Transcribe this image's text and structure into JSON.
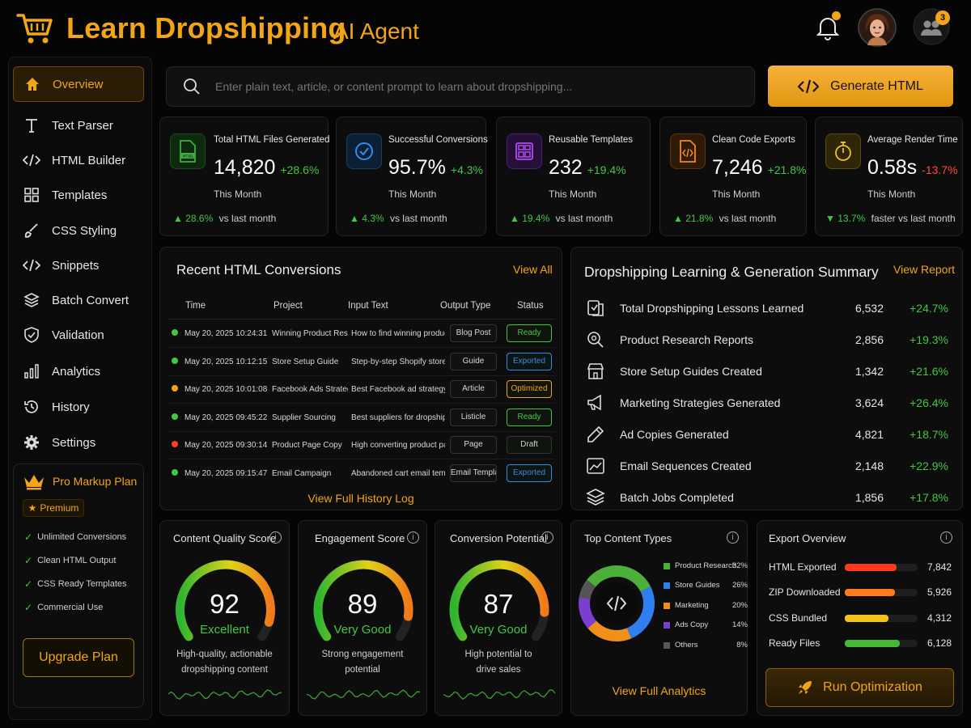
{
  "header": {
    "title": "Learn Dropshipping",
    "subtitle": "AI Agent",
    "notification_dot": true,
    "team_badge": "3"
  },
  "sidebar": {
    "items": [
      {
        "label": "Overview",
        "icon": "home-icon",
        "active": true
      },
      {
        "label": "Text Parser",
        "icon": "text-icon"
      },
      {
        "label": "HTML Builder",
        "icon": "code-icon"
      },
      {
        "label": "Templates",
        "icon": "grid-icon"
      },
      {
        "label": "CSS Styling",
        "icon": "brush-icon"
      },
      {
        "label": "Snippets",
        "icon": "code-icon"
      },
      {
        "label": "Batch Convert",
        "icon": "layers-icon"
      },
      {
        "label": "Validation",
        "icon": "shield-check-icon"
      },
      {
        "label": "Analytics",
        "icon": "bars-icon"
      },
      {
        "label": "History",
        "icon": "history-icon"
      },
      {
        "label": "Settings",
        "icon": "gear-icon"
      }
    ],
    "pro": {
      "title": "Pro Markup Plan",
      "badge": "Premium",
      "features": [
        "Unlimited Conversions",
        "Clean HTML Output",
        "CSS Ready Templates",
        "Commercial Use"
      ],
      "upgrade_label": "Upgrade Plan"
    }
  },
  "search": {
    "placeholder": "Enter plain text, article, or content prompt to learn about dropshipping...",
    "generate_label": "Generate HTML"
  },
  "stats": [
    {
      "title": "Total HTML Files Generated",
      "value": "14,820",
      "change": "+28.6%",
      "period": "This Month",
      "foot_pct": "28.6%",
      "foot_text": "vs last month",
      "icon": "html-file-icon",
      "color": "#3fae3f",
      "neg": false
    },
    {
      "title": "Successful Conversions",
      "value": "95.7%",
      "change": "+4.3%",
      "period": "This Month",
      "foot_pct": "4.3%",
      "foot_text": "vs last month",
      "icon": "check-circle-icon",
      "color": "#2e8ef0",
      "neg": false
    },
    {
      "title": "Reusable Templates",
      "value": "232",
      "change": "+19.4%",
      "period": "This Month",
      "foot_pct": "19.4%",
      "foot_text": "vs last month",
      "icon": "template-icon",
      "color": "#b14cf0",
      "neg": false
    },
    {
      "title": "Clean Code Exports",
      "value": "7,246",
      "change": "+21.8%",
      "period": "This Month",
      "foot_pct": "21.8%",
      "foot_text": "vs last month",
      "icon": "code-file-icon",
      "color": "#f08a1e",
      "neg": false
    },
    {
      "title": "Average Render Time",
      "value": "0.58s",
      "change": "-13.7%",
      "period": "This Month",
      "foot_pct": "13.7%",
      "foot_text": "faster vs last month",
      "icon": "stopwatch-icon",
      "color": "#f2c21a",
      "neg": true
    }
  ],
  "recent": {
    "title": "Recent HTML Conversions",
    "view_all": "View All",
    "headers": [
      "Time",
      "Project",
      "Input Text",
      "Output Type",
      "Status"
    ],
    "rows": [
      {
        "time": "May 20, 2025 10:24:31",
        "project": "Winning Product Research",
        "input": "How to find winning products...",
        "type": "Blog Post",
        "status": "Ready",
        "dot": "#42c742",
        "status_color": "#42c742"
      },
      {
        "time": "May 20, 2025 10:12:15",
        "project": "Store Setup Guide",
        "input": "Step-by-step Shopify store...",
        "type": "Guide",
        "status": "Exported",
        "dot": "#42c742",
        "status_color": "#2e8ef0"
      },
      {
        "time": "May 20, 2025 10:01:08",
        "project": "Facebook Ads Strategy",
        "input": "Best Facebook ad strategy...",
        "type": "Article",
        "status": "Optimized",
        "dot": "#f2a516",
        "status_color": "#f2a516"
      },
      {
        "time": "May 20, 2025 09:45:22",
        "project": "Supplier Sourcing",
        "input": "Best suppliers for dropshipping...",
        "type": "Listicle",
        "status": "Ready",
        "dot": "#42c742",
        "status_color": "#42c742"
      },
      {
        "time": "May 20, 2025 09:30:14",
        "project": "Product Page Copy",
        "input": "High converting product page...",
        "type": "Page",
        "status": "Draft",
        "dot": "#ff3a2a",
        "status_color": "#d0d0d0"
      },
      {
        "time": "May 20, 2025 09:15:47",
        "project": "Email Campaign",
        "input": "Abandoned cart email template...",
        "type": "Email Template",
        "status": "Exported",
        "dot": "#42c742",
        "status_color": "#2e8ef0"
      }
    ],
    "footer_link": "View Full History Log"
  },
  "summary": {
    "title": "Dropshipping Learning & Generation Summary",
    "view_report": "View Report",
    "rows": [
      {
        "label": "Total Dropshipping Lessons Learned",
        "value": "6,532",
        "change": "+24.7%",
        "icon": "lessons-icon"
      },
      {
        "label": "Product Research Reports",
        "value": "2,856",
        "change": "+19.3%",
        "icon": "magnifier-icon"
      },
      {
        "label": "Store Setup Guides Created",
        "value": "1,342",
        "change": "+21.6%",
        "icon": "store-icon"
      },
      {
        "label": "Marketing Strategies Generated",
        "value": "3,624",
        "change": "+26.4%",
        "icon": "megaphone-icon"
      },
      {
        "label": "Ad Copies Generated",
        "value": "4,821",
        "change": "+18.7%",
        "icon": "pencil-icon"
      },
      {
        "label": "Email Sequences Created",
        "value": "2,148",
        "change": "+22.9%",
        "icon": "image-chart-icon"
      },
      {
        "label": "Batch Jobs Completed",
        "value": "1,856",
        "change": "+17.8%",
        "icon": "layers-icon"
      }
    ]
  },
  "gauges": [
    {
      "title": "Content Quality Score",
      "score": "92",
      "score_frac": 0.92,
      "rating": "Excellent",
      "desc1": "High-quality, actionable",
      "desc2": "dropshipping content",
      "rating_color": "#42c742"
    },
    {
      "title": "Engagement Score",
      "score": "89",
      "score_frac": 0.89,
      "rating": "Very Good",
      "desc1": "Strong engagement",
      "desc2": "potential",
      "rating_color": "#42c742"
    },
    {
      "title": "Conversion Potential",
      "score": "87",
      "score_frac": 0.87,
      "rating": "Very Good",
      "desc1": "High potential to",
      "desc2": "drive sales",
      "rating_color": "#42c742"
    }
  ],
  "top_content": {
    "title": "Top Content Types",
    "items": [
      {
        "name": "Product Research",
        "pct": "32%",
        "value": 32,
        "color": "#4caf3a"
      },
      {
        "name": "Store Guides",
        "pct": "26%",
        "value": 26,
        "color": "#2f7ff0"
      },
      {
        "name": "Marketing",
        "pct": "20%",
        "value": 20,
        "color": "#f0901a"
      },
      {
        "name": "Ads Copy",
        "pct": "14%",
        "value": 14,
        "color": "#7b3fd0"
      },
      {
        "name": "Others",
        "pct": "8%",
        "value": 8,
        "color": "#555555"
      }
    ],
    "footer_link": "View Full Analytics"
  },
  "export": {
    "title": "Export Overview",
    "rows": [
      {
        "label": "HTML Exported",
        "value": "7,842",
        "frac": 0.71,
        "color": "#ff3a1a"
      },
      {
        "label": "ZIP Downloaded",
        "value": "5,926",
        "frac": 0.69,
        "color": "#ff7a1a"
      },
      {
        "label": "CSS Bundled",
        "value": "4,312",
        "frac": 0.6,
        "color": "#f2c21a"
      },
      {
        "label": "Ready Files",
        "value": "6,128",
        "frac": 0.75,
        "color": "#45b83a"
      }
    ],
    "run_label": "Run Optimization"
  }
}
